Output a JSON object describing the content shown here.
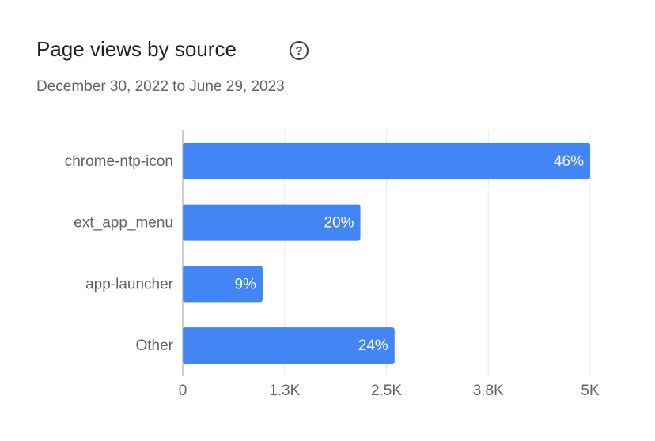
{
  "chart_data": {
    "type": "bar",
    "orientation": "horizontal",
    "title": "Page views by source",
    "subtitle": "December 30, 2022 to June 29, 2023",
    "categories": [
      "chrome-ntp-icon",
      "ext_app_menu",
      "app-launcher",
      "Other"
    ],
    "values": [
      5000,
      2180,
      980,
      2600
    ],
    "bar_labels": [
      "46%",
      "20%",
      "9%",
      "24%"
    ],
    "color": "#4285f4",
    "xlim": [
      0,
      5000
    ],
    "xticks": [
      0,
      {
        "value": 1250,
        "label": "1.3K"
      },
      {
        "value": 2500,
        "label": "2.5K"
      },
      {
        "value": 3750,
        "label": "3.8K"
      },
      {
        "value": 5000,
        "label": "5K"
      }
    ],
    "grid": true
  }
}
